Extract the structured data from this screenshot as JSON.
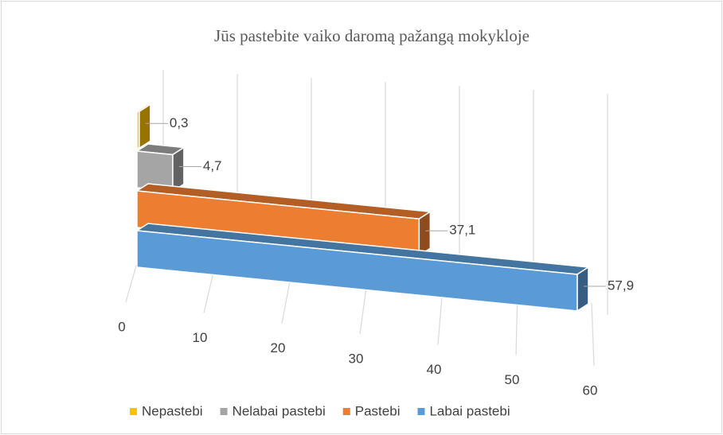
{
  "chart_data": {
    "type": "bar3d",
    "title": "Jūs pastebite vaiko daromą pažangą mokykloje",
    "xlim": [
      0,
      60
    ],
    "xticks": [
      0,
      10,
      20,
      30,
      40,
      50,
      60
    ],
    "grid": true,
    "legend": "bottom",
    "series": [
      {
        "name": "Nepastebi",
        "color": "#ffc000",
        "values": [
          0.3
        ],
        "value_labels": [
          "0,3"
        ]
      },
      {
        "name": "Nelabai pastebi",
        "color": "#a5a5a5",
        "values": [
          4.7
        ],
        "value_labels": [
          "4,7"
        ]
      },
      {
        "name": "Pastebi",
        "color": "#ed7d31",
        "values": [
          37.1
        ],
        "value_labels": [
          "37,1"
        ]
      },
      {
        "name": "Labai pastebi",
        "color": "#5b9bd5",
        "values": [
          57.9
        ],
        "value_labels": [
          "57,9"
        ]
      }
    ]
  }
}
